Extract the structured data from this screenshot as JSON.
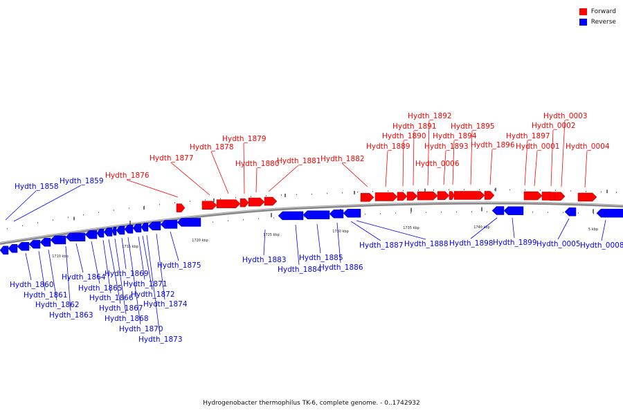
{
  "caption": "Hydrogenobacter thermophilus TK-6, complete genome. - 0..1742932",
  "legend": [
    {
      "label": "Forward",
      "color": "#ff0000"
    },
    {
      "label": "Reverse",
      "color": "#0000ff"
    }
  ],
  "colors": {
    "forward": "#ff0000",
    "reverse": "#0000ff",
    "backbone": "#888888"
  },
  "tick_labels": [
    "1710 kbp",
    "1715 kbp",
    "1720 kbp",
    "1725 kbp",
    "1730 kbp",
    "1735 kbp",
    "1740 kbp",
    "5 kbp"
  ],
  "forward_genes": [
    "Hydth_1876",
    "Hydth_1877",
    "Hydth_1878",
    "Hydth_1879",
    "Hydth_1880",
    "Hydth_1881",
    "Hydth_1882",
    "Hydth_1889",
    "Hydth_1890",
    "Hydth_1891",
    "Hydth_1892",
    "Hydth_1893",
    "Hydth_1894",
    "Hydth_1895",
    "Hydth_1896",
    "Hydth_1897",
    "Hydth_0001",
    "Hydth_0002",
    "Hydth_0003",
    "Hydth_0004",
    "Hydth_0006"
  ],
  "reverse_genes": [
    "Hydth_1858",
    "Hydth_1859",
    "Hydth_1860",
    "Hydth_1861",
    "Hydth_1862",
    "Hydth_1863",
    "Hydth_1864",
    "Hydth_1865",
    "Hydth_1866",
    "Hydth_1867",
    "Hydth_1868",
    "Hydth_1869",
    "Hydth_1870",
    "Hydth_1871",
    "Hydth_1872",
    "Hydth_1873",
    "Hydth_1874",
    "Hydth_1875",
    "Hydth_1883",
    "Hydth_1884",
    "Hydth_1885",
    "Hydth_1886",
    "Hydth_1887",
    "Hydth_1888",
    "Hydth_1898",
    "Hydth_1899",
    "Hydth_0005",
    "Hydth_0008"
  ]
}
